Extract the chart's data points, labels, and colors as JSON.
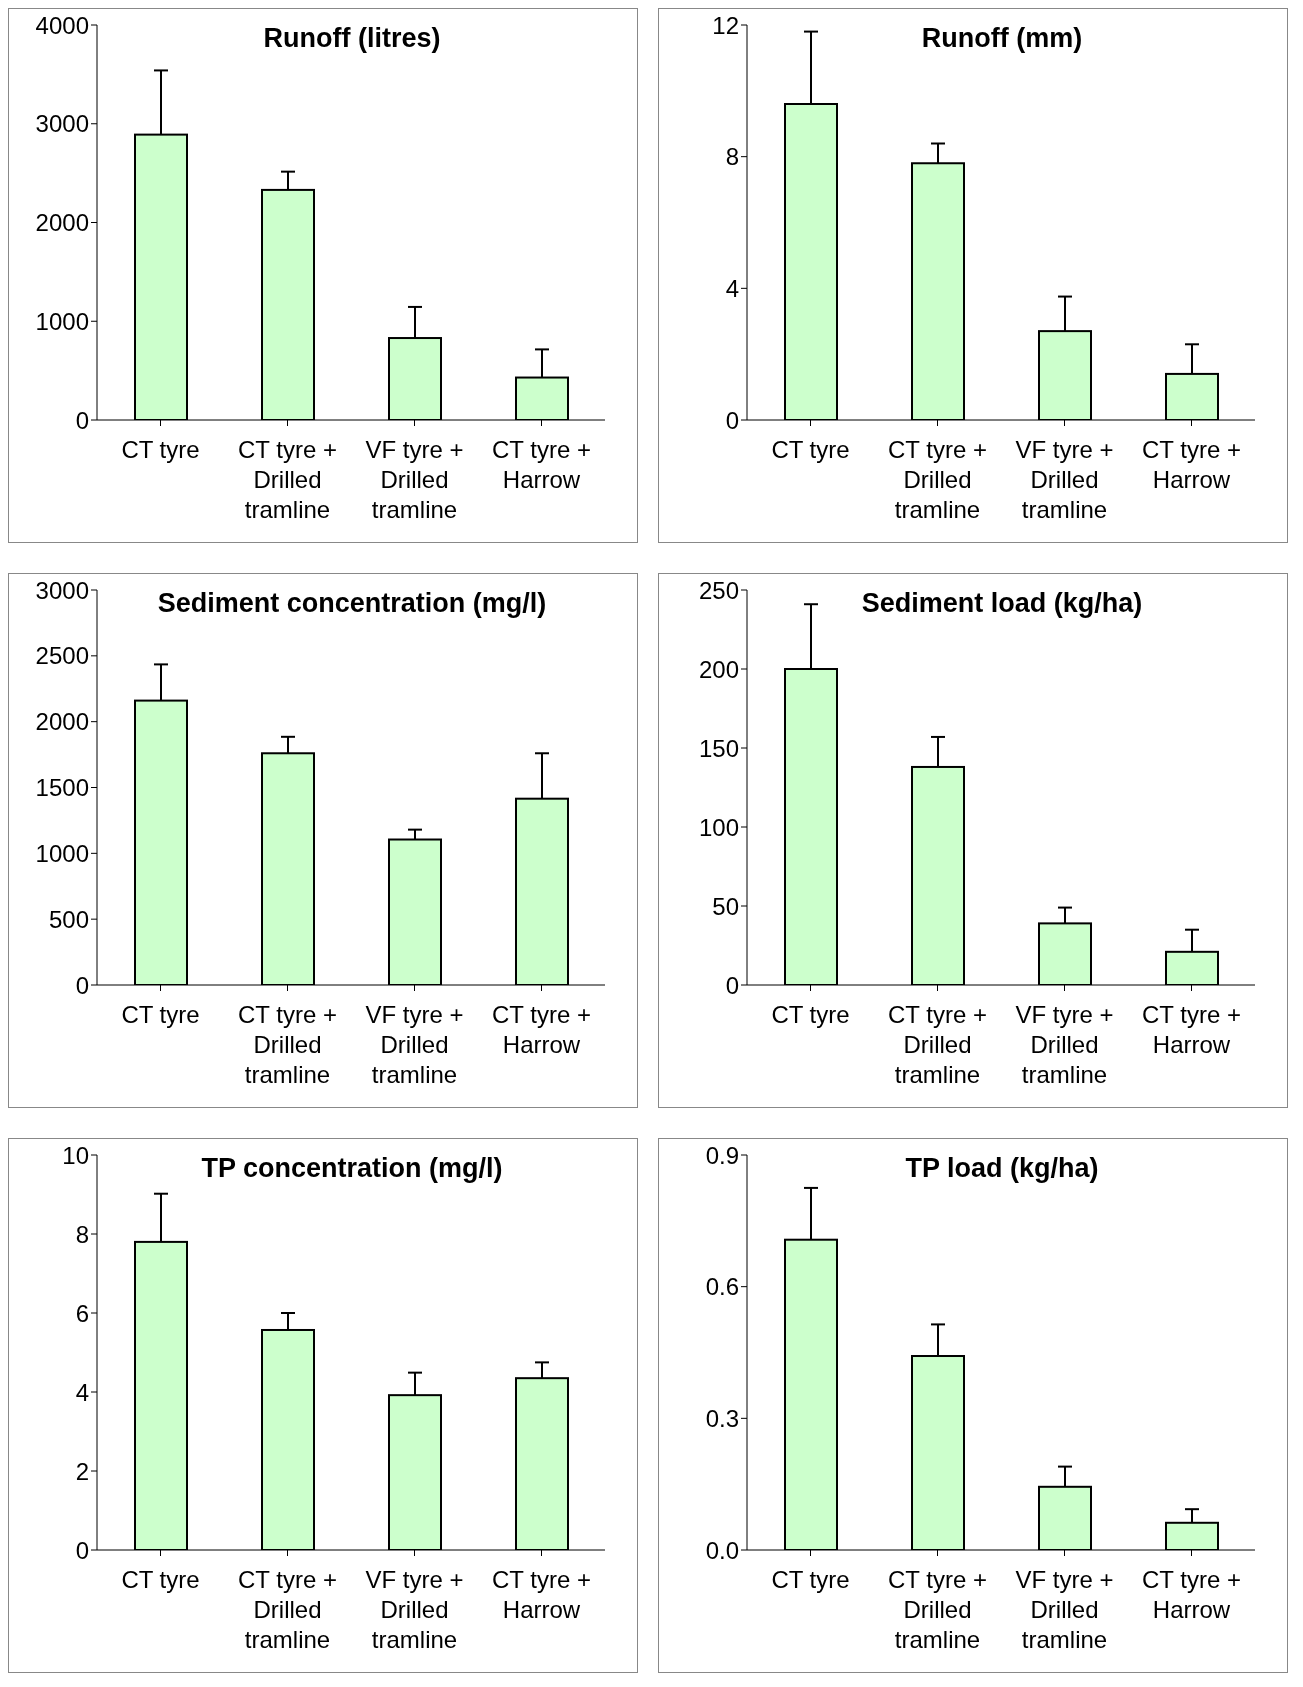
{
  "chart_data": [
    {
      "type": "bar",
      "title": "Runoff (litres)",
      "categories": [
        "CT tyre",
        "CT tyre + Drilled tramline",
        "VF tyre + Drilled tramline",
        "CT tyre + Harrow"
      ],
      "values": [
        2890,
        2330,
        830,
        430
      ],
      "errors": [
        [
          2890,
          3540
        ],
        [
          2330,
          2515
        ],
        [
          830,
          1145
        ],
        [
          430,
          715
        ]
      ],
      "color": "#ccffcc",
      "ylim": [
        0,
        4000
      ],
      "yticks": [
        0,
        1000,
        2000,
        3000,
        4000
      ]
    },
    {
      "type": "bar",
      "title": "Runoff (mm)",
      "categories": [
        "CT tyre",
        "CT tyre + Drilled tramline",
        "VF tyre + Drilled tramline",
        "CT tyre + Harrow"
      ],
      "values": [
        9.6,
        7.8,
        2.7,
        1.4
      ],
      "errors": [
        [
          9.6,
          11.8
        ],
        [
          7.8,
          8.4
        ],
        [
          2.7,
          3.75
        ],
        [
          1.4,
          2.3
        ]
      ],
      "color": "#ccffcc",
      "ylim": [
        0,
        12
      ],
      "yticks": [
        0,
        4,
        8,
        12
      ]
    },
    {
      "type": "bar",
      "title": "Sediment concentration (mg/l)",
      "categories": [
        "CT tyre",
        "CT tyre + Drilled tramline",
        "VF tyre + Drilled tramline",
        "CT tyre + Harrow"
      ],
      "values": [
        2160,
        1760,
        1105,
        1415
      ],
      "errors": [
        [
          2160,
          2435
        ],
        [
          1760,
          1885
        ],
        [
          1105,
          1180
        ],
        [
          1415,
          1760
        ]
      ],
      "color": "#ccffcc",
      "ylim": [
        0,
        3000
      ],
      "yticks": [
        0,
        500,
        1000,
        1500,
        2000,
        2500,
        3000
      ]
    },
    {
      "type": "bar",
      "title": "Sediment load (kg/ha)",
      "categories": [
        "CT tyre",
        "CT tyre + Drilled tramline",
        "VF tyre + Drilled tramline",
        "CT tyre + Harrow"
      ],
      "values": [
        200,
        138,
        39,
        21
      ],
      "errors": [
        [
          200,
          241
        ],
        [
          138,
          157
        ],
        [
          39,
          49
        ],
        [
          21,
          35
        ]
      ],
      "color": "#ccffcc",
      "ylim": [
        0,
        250
      ],
      "yticks": [
        0,
        50,
        100,
        150,
        200,
        250
      ]
    },
    {
      "type": "bar",
      "title": "TP concentration (mg/l)",
      "categories": [
        "CT tyre",
        "CT tyre + Drilled tramline",
        "VF tyre + Drilled tramline",
        "CT tyre + Harrow"
      ],
      "values": [
        7.8,
        5.57,
        3.92,
        4.35
      ],
      "errors": [
        [
          7.8,
          9.02
        ],
        [
          5.57,
          6.0
        ],
        [
          3.92,
          4.49
        ],
        [
          4.35,
          4.75
        ]
      ],
      "color": "#ccffcc",
      "ylim": [
        0,
        10
      ],
      "yticks": [
        0,
        2,
        4,
        6,
        8,
        10
      ]
    },
    {
      "type": "bar",
      "title": "TP load (kg/ha)",
      "categories": [
        "CT tyre",
        "CT tyre + Drilled tramline",
        "VF tyre + Drilled tramline",
        "CT tyre + Harrow"
      ],
      "values": [
        0.707,
        0.442,
        0.144,
        0.062
      ],
      "errors": [
        [
          0.707,
          0.825
        ],
        [
          0.442,
          0.514
        ],
        [
          0.144,
          0.19
        ],
        [
          0.062,
          0.093
        ]
      ],
      "color": "#ccffcc",
      "ylim": [
        0,
        0.9
      ],
      "yticks": [
        {
          "value": 0,
          "label": "0.0"
        },
        0.3,
        0.6,
        {
          "value": 0.9,
          "label": "0.9"
        }
      ]
    }
  ]
}
